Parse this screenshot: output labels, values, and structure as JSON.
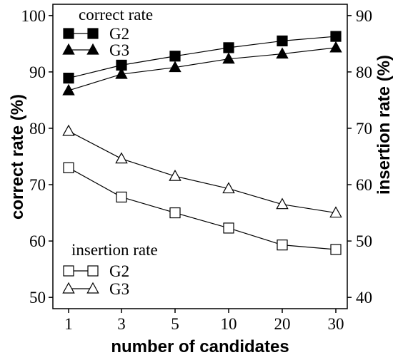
{
  "chart_data": {
    "type": "line",
    "xlabel": "number of candidates",
    "categories": [
      "1",
      "3",
      "5",
      "10",
      "20",
      "30"
    ],
    "y_left": {
      "label": "correct rate (%)",
      "ylim": [
        48,
        102
      ],
      "ticks": [
        "50",
        "60",
        "70",
        "80",
        "90",
        "100"
      ]
    },
    "y_right": {
      "label": "insertion rate (%)",
      "ylim": [
        38,
        92
      ],
      "ticks": [
        "40",
        "50",
        "60",
        "70",
        "80",
        "90"
      ]
    },
    "legend_top": {
      "title": "correct rate",
      "entries": [
        "G2",
        "G3"
      ]
    },
    "legend_bottom": {
      "title": "insertion rate",
      "entries": [
        "G2",
        "G3"
      ]
    },
    "series": [
      {
        "name": "G2",
        "group": "correct rate",
        "axis": "left",
        "marker": "filled-square",
        "values": [
          88.9,
          91.2,
          92.8,
          94.3,
          95.5,
          96.3
        ]
      },
      {
        "name": "G3",
        "group": "correct rate",
        "axis": "left",
        "marker": "filled-triangle",
        "values": [
          86.7,
          89.6,
          90.8,
          92.3,
          93.2,
          94.3
        ]
      },
      {
        "name": "G2",
        "group": "insertion rate",
        "axis": "right",
        "marker": "open-square",
        "values": [
          63.0,
          57.8,
          55.0,
          52.3,
          49.3,
          48.5
        ]
      },
      {
        "name": "G3",
        "group": "insertion rate",
        "axis": "right",
        "marker": "open-triangle",
        "values": [
          69.5,
          64.6,
          61.5,
          59.3,
          56.5,
          55.0
        ]
      }
    ]
  }
}
